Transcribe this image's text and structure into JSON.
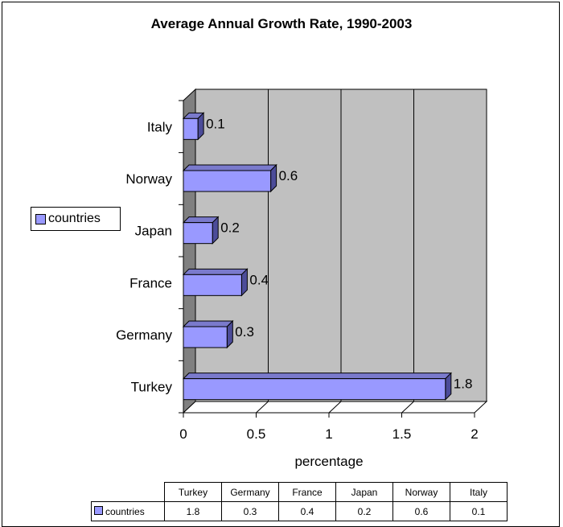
{
  "chart_data": {
    "type": "bar",
    "orientation": "horizontal",
    "title": "Average Annual Growth Rate, 1990-2003",
    "xlabel": "percentage",
    "ylabel": "",
    "categories": [
      "Turkey",
      "Germany",
      "France",
      "Japan",
      "Norway",
      "Italy"
    ],
    "series": [
      {
        "name": "countries",
        "values": [
          1.8,
          0.3,
          0.4,
          0.2,
          0.6,
          0.1
        ],
        "color": "#9999ff"
      }
    ],
    "xlim": [
      0,
      2
    ],
    "xticks": [
      "0",
      "0.5",
      "1",
      "1.5",
      "2"
    ],
    "grid": true,
    "legend": "left",
    "data_table": true
  }
}
